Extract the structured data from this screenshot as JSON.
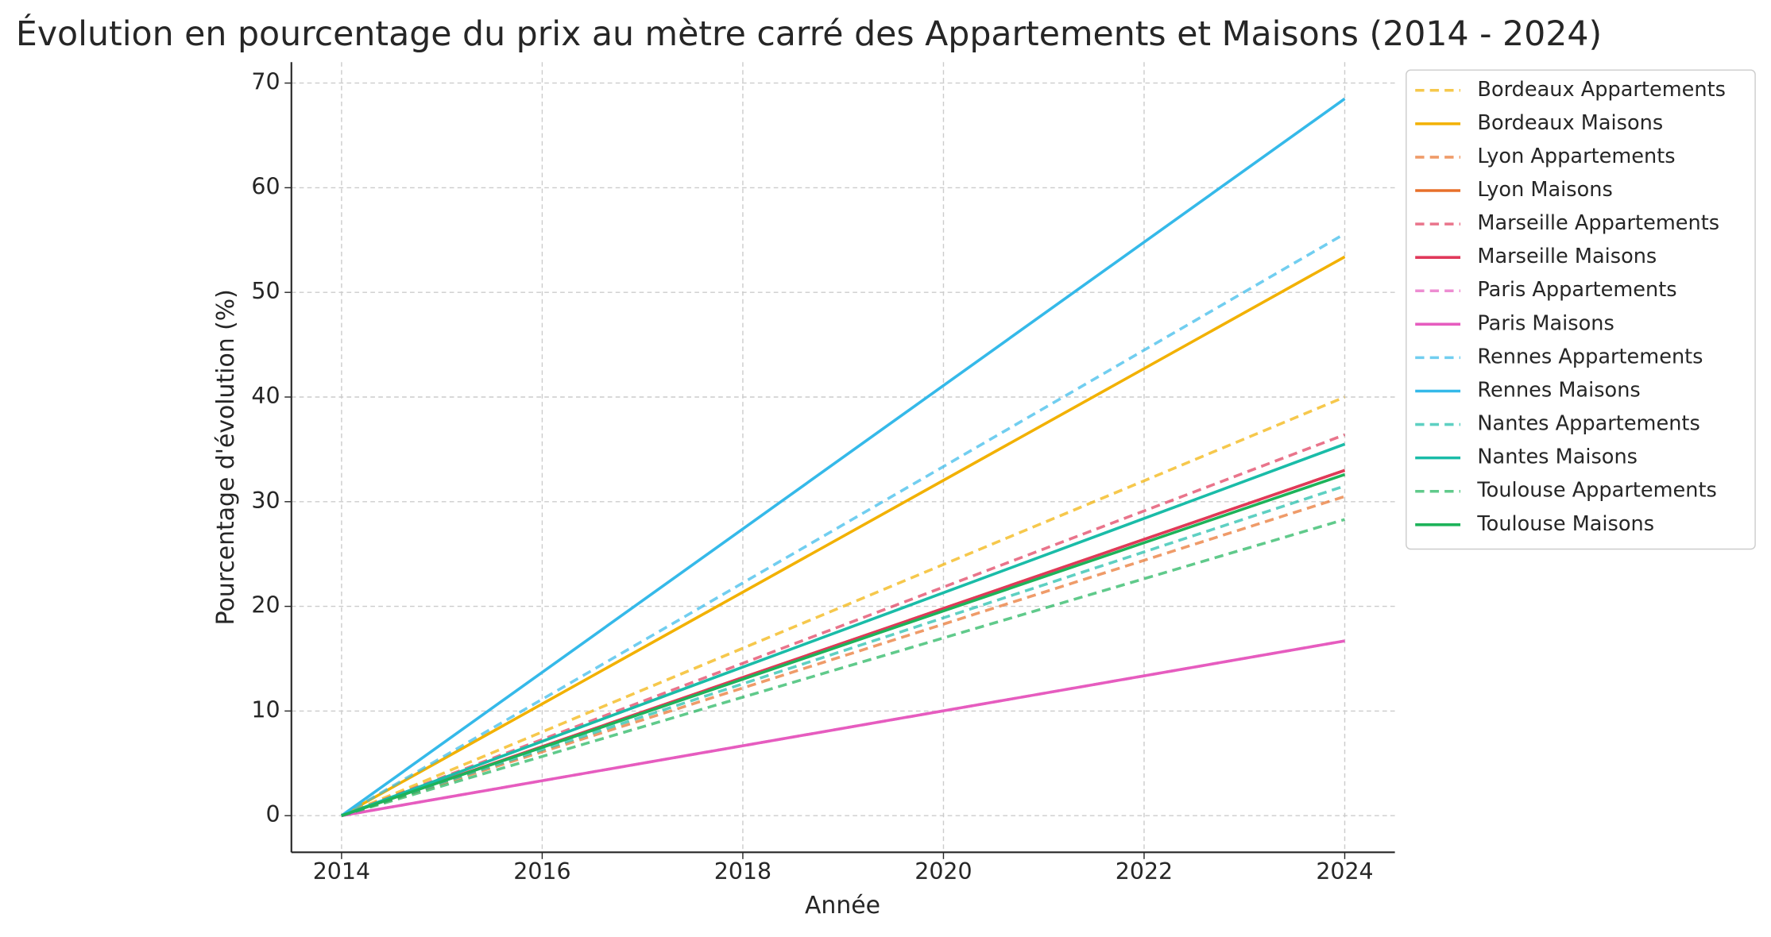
{
  "chart_data": {
    "type": "line",
    "title": "Évolution en pourcentage du prix au mètre carré des Appartements et Maisons (2014 - 2024)",
    "x_label": "Année",
    "y_label": "Pourcentage d'évolution (%)",
    "x": [
      2014,
      2024
    ],
    "xlim": [
      2013.5,
      2024.5
    ],
    "xticks": [
      2014,
      2016,
      2018,
      2020,
      2022,
      2024
    ],
    "ylim": [
      -3.5,
      72
    ],
    "yticks": [
      0,
      10,
      20,
      30,
      40,
      50,
      60,
      70
    ],
    "grid": true,
    "legend": "outside-upper-right",
    "series": [
      {
        "name": "Bordeaux Appartements",
        "color": "#f2b100",
        "style": "dashed",
        "values": [
          0,
          40
        ]
      },
      {
        "name": "Bordeaux Maisons",
        "color": "#f2b100",
        "style": "solid",
        "values": [
          0,
          53.4
        ]
      },
      {
        "name": "Lyon Appartements",
        "color": "#e8702a",
        "style": "dashed",
        "values": [
          0,
          30.5
        ]
      },
      {
        "name": "Lyon Maisons",
        "color": "#e8702a",
        "style": "solid",
        "values": [
          0,
          33
        ]
      },
      {
        "name": "Marseille Appartements",
        "color": "#e0395a",
        "style": "dashed",
        "values": [
          0,
          36.4
        ]
      },
      {
        "name": "Marseille Maisons",
        "color": "#e0395a",
        "style": "solid",
        "values": [
          0,
          33
        ]
      },
      {
        "name": "Paris Appartements",
        "color": "#e65cbf",
        "style": "dashed",
        "values": [
          0,
          16.7
        ]
      },
      {
        "name": "Paris Maisons",
        "color": "#e65cbf",
        "style": "solid",
        "values": [
          0,
          16.7
        ]
      },
      {
        "name": "Rennes Appartements",
        "color": "#35b9e9",
        "style": "dashed",
        "values": [
          0,
          55.6
        ]
      },
      {
        "name": "Rennes Maisons",
        "color": "#35b9e9",
        "style": "solid",
        "values": [
          0,
          68.5
        ]
      },
      {
        "name": "Nantes Appartements",
        "color": "#1abca8",
        "style": "dashed",
        "values": [
          0,
          31.5
        ]
      },
      {
        "name": "Nantes Maisons",
        "color": "#1abca8",
        "style": "solid",
        "values": [
          0,
          35.5
        ]
      },
      {
        "name": "Toulouse Appartements",
        "color": "#1db35a",
        "style": "dashed",
        "values": [
          0,
          28.3
        ]
      },
      {
        "name": "Toulouse Maisons",
        "color": "#1db35a",
        "style": "solid",
        "values": [
          0,
          32.6
        ]
      }
    ]
  }
}
